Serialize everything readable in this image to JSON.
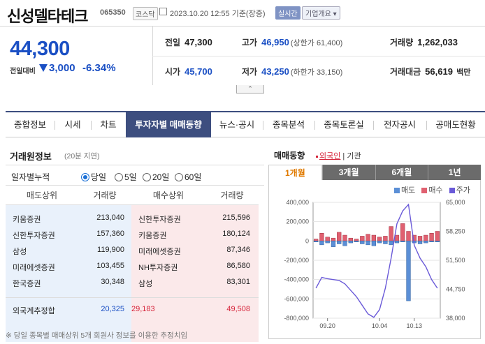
{
  "header": {
    "stock_name": "신성델타테크",
    "stock_code": "065350",
    "market": "코스닥",
    "datetime": "2023.10.20 12:55 기준(장중)",
    "live_badge": "실시간",
    "overview_label": "기업개요"
  },
  "price": {
    "current": "44,300",
    "change_label": "전일대비",
    "change_value": "3,000",
    "change_pct": "-6.34%"
  },
  "summary": {
    "prev_close_label": "전일",
    "prev_close": "47,300",
    "high_label": "고가",
    "high": "46,950",
    "upper_limit": "(상한가 61,400)",
    "volume_label": "거래량",
    "volume": "1,262,033",
    "open_label": "시가",
    "open": "45,700",
    "low_label": "저가",
    "low": "43,250",
    "lower_limit": "(하한가 33,150)",
    "amount_label": "거래대금",
    "amount": "56,619",
    "amount_unit": "백만"
  },
  "tabs": [
    {
      "label": "종합정보"
    },
    {
      "label": "시세"
    },
    {
      "label": "차트"
    },
    {
      "label": "투자자별 매매동향"
    },
    {
      "label": "뉴스·공시"
    },
    {
      "label": "종목분석"
    },
    {
      "label": "종목토론실"
    },
    {
      "label": "전자공시"
    },
    {
      "label": "공매도현황"
    }
  ],
  "broker": {
    "title": "거래원정보",
    "note": "(20분 지연)",
    "filter_label": "일자별누적",
    "options": [
      "당일",
      "5일",
      "20일",
      "60일"
    ],
    "selected": "당일",
    "col_sell": "매도상위",
    "col_sell_vol": "거래량",
    "col_buy": "매수상위",
    "col_buy_vol": "거래량",
    "rows": [
      {
        "sell": "키움증권",
        "sell_vol": "213,040",
        "buy": "신한투자증권",
        "buy_vol": "215,596"
      },
      {
        "sell": "신한투자증권",
        "sell_vol": "157,360",
        "buy": "키움증권",
        "buy_vol": "180,124"
      },
      {
        "sell": "삼성",
        "sell_vol": "119,900",
        "buy": "미래에셋증권",
        "buy_vol": "87,346"
      },
      {
        "sell": "미래에셋증권",
        "sell_vol": "103,455",
        "buy": "NH투자증권",
        "buy_vol": "86,580"
      },
      {
        "sell": "한국증권",
        "sell_vol": "30,348",
        "buy": "삼성",
        "buy_vol": "83,301"
      }
    ],
    "foreign_label": "외국계추정합",
    "foreign_sell": "20,325",
    "foreign_net": "29,183",
    "foreign_buy": "49,508",
    "footnote": "※ 당일 종목별 매매상위 5개 회원사 정보를 이용한 추정치임"
  },
  "trend": {
    "title": "매매동향",
    "filter_foreign": "외국인",
    "filter_inst": "기관",
    "periods": [
      "1개월",
      "3개월",
      "6개월",
      "1년"
    ],
    "selected_period": "1개월",
    "legend_sell": "매도",
    "legend_buy": "매수",
    "legend_price": "주가",
    "colors": {
      "sell": "#5b8fd6",
      "buy": "#e06070",
      "price": "#6a5ad8"
    }
  },
  "chart_data": {
    "type": "bar",
    "x_ticks": [
      "09.20",
      "10.04",
      "10.13"
    ],
    "y_left_ticks": [
      "400,000",
      "200,000",
      "0",
      "-200,000",
      "-400,000",
      "-600,000",
      "-800,000"
    ],
    "y_right_ticks": [
      "65,000",
      "58,250",
      "51,500",
      "44,750",
      "38,000"
    ],
    "ylim_left": [
      -800000,
      400000
    ],
    "ylim_right": [
      38000,
      65000
    ],
    "series": [
      {
        "name": "매도",
        "values": [
          -10000,
          -40000,
          -20000,
          -60000,
          -30000,
          -50000,
          -20000,
          -10000,
          -30000,
          -40000,
          -50000,
          -20000,
          -30000,
          -40000,
          -20000,
          -10000,
          -620000,
          -20000,
          -30000,
          -20000,
          -10000,
          -10000
        ]
      },
      {
        "name": "매수",
        "values": [
          20000,
          80000,
          40000,
          30000,
          90000,
          60000,
          30000,
          20000,
          50000,
          70000,
          60000,
          40000,
          50000,
          150000,
          60000,
          180000,
          100000,
          60000,
          50000,
          60000,
          80000,
          100000
        ]
      },
      {
        "name": "주가",
        "values": [
          45000,
          47500,
          47200,
          47000,
          46800,
          46000,
          44500,
          43000,
          41000,
          39000,
          38200,
          40000,
          45000,
          52000,
          60000,
          63000,
          64500,
          55000,
          52000,
          50000,
          47000,
          45000
        ]
      }
    ]
  }
}
